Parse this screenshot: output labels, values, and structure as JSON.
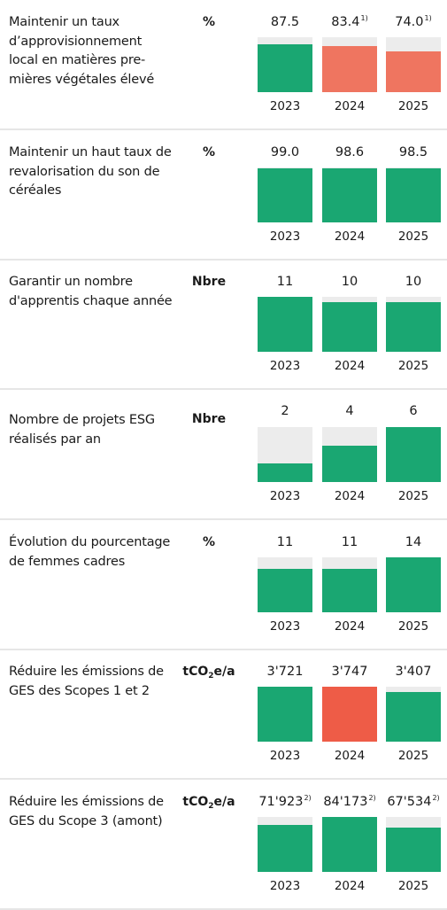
{
  "colors": {
    "on_track": "#1aa772",
    "off_track": "#ef7560",
    "off_track_strong": "#ee5c47",
    "track": "#ececec",
    "separator": "#e6e6e6"
  },
  "chart_data": [
    {
      "type": "bar",
      "title": "Maintenir un taux d’approvisionnement local en matières pre-mières végétales élevé",
      "unit": "%",
      "categories": [
        "2023",
        "2024",
        "2025"
      ],
      "values": [
        87.5,
        83.4,
        74.0
      ],
      "labels": [
        "87.5",
        "83.4",
        "74.0"
      ],
      "footnotes": [
        "",
        "1)",
        "1)"
      ],
      "colors": [
        "#1aa772",
        "#ef7560",
        "#ef7560"
      ],
      "ylim": [
        0,
        100
      ]
    },
    {
      "type": "bar",
      "title": "Maintenir un haut taux de revalorisation du son de céréales",
      "unit": "%",
      "categories": [
        "2023",
        "2024",
        "2025"
      ],
      "values": [
        99.0,
        98.6,
        98.5
      ],
      "labels": [
        "99.0",
        "98.6",
        "98.5"
      ],
      "footnotes": [
        "",
        "",
        ""
      ],
      "colors": [
        "#1aa772",
        "#1aa772",
        "#1aa772"
      ],
      "ylim": [
        0,
        100
      ]
    },
    {
      "type": "bar",
      "title": "Garantir un nombre d'apprentis chaque année",
      "unit": "Nbre",
      "categories": [
        "2023",
        "2024",
        "2025"
      ],
      "values": [
        11,
        10,
        10
      ],
      "labels": [
        "11",
        "10",
        "10"
      ],
      "footnotes": [
        "",
        "",
        ""
      ],
      "colors": [
        "#1aa772",
        "#1aa772",
        "#1aa772"
      ],
      "ylim": [
        0,
        11
      ]
    },
    {
      "type": "bar",
      "title": "Nombre de projets ESG réalisés par an",
      "unit": "Nbre",
      "categories": [
        "2023",
        "2024",
        "2025"
      ],
      "values": [
        2,
        4,
        6
      ],
      "labels": [
        "2",
        "4",
        "6"
      ],
      "footnotes": [
        "",
        "",
        ""
      ],
      "colors": [
        "#1aa772",
        "#1aa772",
        "#1aa772"
      ],
      "ylim": [
        0,
        6
      ]
    },
    {
      "type": "bar",
      "title": "Évolution du pourcentage de femmes cadres",
      "unit": "%",
      "categories": [
        "2023",
        "2024",
        "2025"
      ],
      "values": [
        11,
        11,
        14
      ],
      "labels": [
        "11",
        "11",
        "14"
      ],
      "footnotes": [
        "",
        "",
        ""
      ],
      "colors": [
        "#1aa772",
        "#1aa772",
        "#1aa772"
      ],
      "ylim": [
        0,
        14
      ]
    },
    {
      "type": "bar",
      "title": "Réduire les émissions de GES des Scopes 1 et 2",
      "unit": "tCO",
      "unit_sub": "2",
      "unit_tail": "e/a",
      "categories": [
        "2023",
        "2024",
        "2025"
      ],
      "values": [
        3721,
        3747,
        3407
      ],
      "labels": [
        "3'721",
        "3'747",
        "3'407"
      ],
      "footnotes": [
        "",
        "",
        ""
      ],
      "colors": [
        "#1aa772",
        "#ee5c47",
        "#1aa772"
      ],
      "ylim": [
        0,
        3747
      ]
    },
    {
      "type": "bar",
      "title": "Réduire les émissions de GES du Scope 3 (amont)",
      "unit": "tCO",
      "unit_sub": "2",
      "unit_tail": "e/a",
      "categories": [
        "2023",
        "2024",
        "2025"
      ],
      "values": [
        71923,
        84173,
        67534
      ],
      "labels": [
        "71'923",
        "84'173",
        "67'534"
      ],
      "footnotes": [
        "2)",
        "2)",
        "2)"
      ],
      "colors": [
        "#1aa772",
        "#1aa772",
        "#1aa772"
      ],
      "ylim": [
        0,
        84173
      ]
    }
  ]
}
